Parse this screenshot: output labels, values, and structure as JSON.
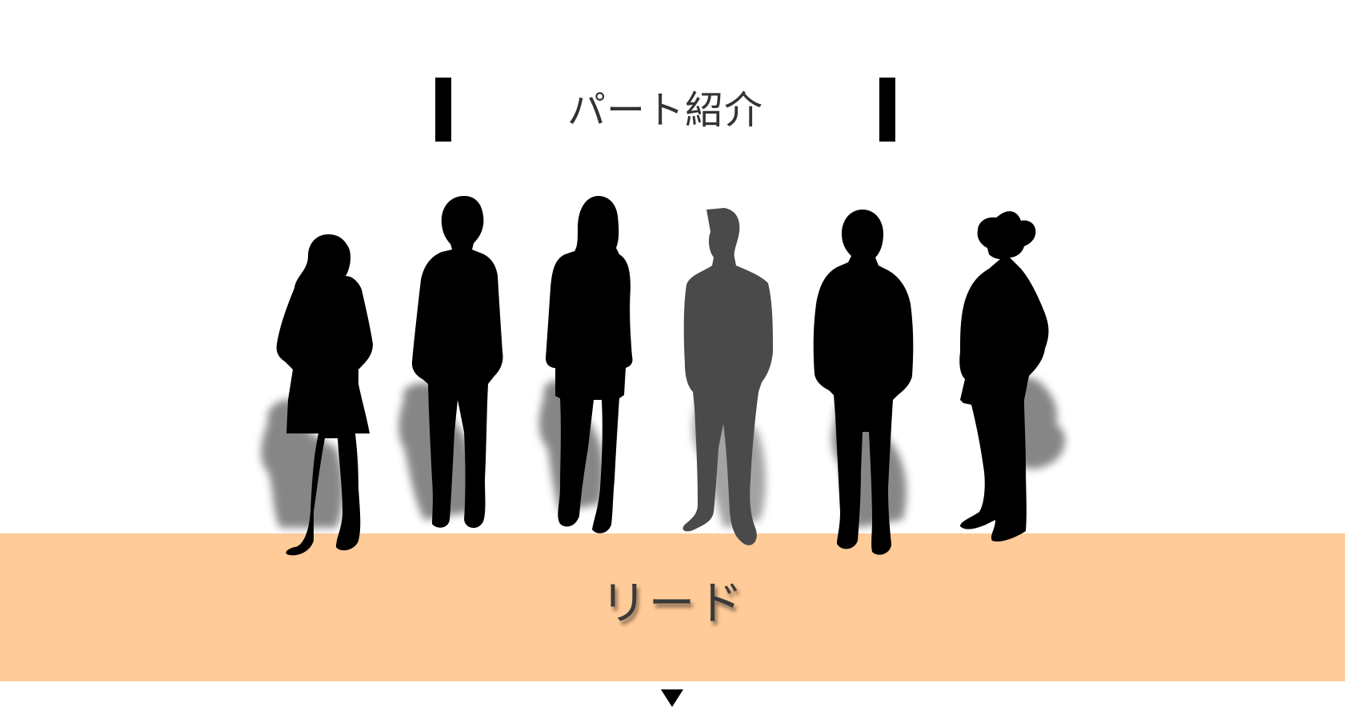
{
  "title": "パート紹介",
  "part_label": "リード",
  "colors": {
    "band": "#ffcb98",
    "silhouette": "#000000",
    "selected_silhouette": "#4a4a4a",
    "shadow": "#7a7a7a"
  },
  "members": [
    {
      "id": "member-1",
      "selected": false
    },
    {
      "id": "member-2",
      "selected": false
    },
    {
      "id": "member-3",
      "selected": false
    },
    {
      "id": "member-4",
      "selected": true
    },
    {
      "id": "member-5",
      "selected": false
    },
    {
      "id": "member-6",
      "selected": false
    }
  ],
  "icons": {
    "next": "down-triangle-icon"
  }
}
